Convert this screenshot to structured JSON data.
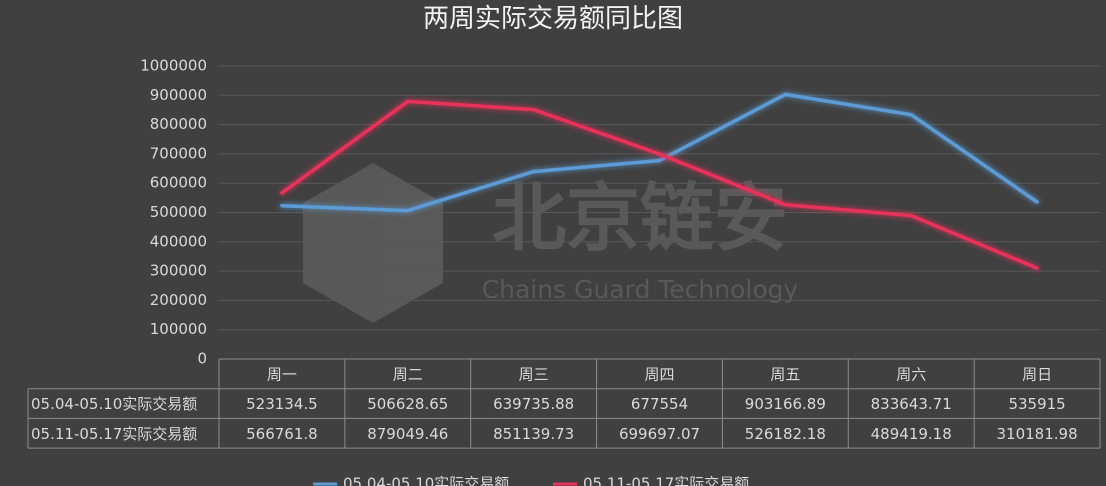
{
  "chart_data": {
    "type": "line",
    "title": "两周实际交易额同比图",
    "categories": [
      "周一",
      "周二",
      "周三",
      "周四",
      "周五",
      "周六",
      "周日"
    ],
    "series": [
      {
        "name": "05.04-05.10实际交易额",
        "color": "#5b9bd5",
        "values": [
          523134.5,
          506628.65,
          639735.88,
          677554,
          903166.89,
          833643.71,
          535915
        ]
      },
      {
        "name": "05.11-05.17实际交易额",
        "color": "#e8305a",
        "values": [
          566761.8,
          879049.46,
          851139.73,
          699697.07,
          526182.18,
          489419.18,
          310181.98
        ]
      }
    ],
    "ylim": [
      0,
      1000000
    ],
    "yticks": [
      0,
      100000,
      200000,
      300000,
      400000,
      500000,
      600000,
      700000,
      800000,
      900000,
      1000000
    ],
    "grid": true,
    "legend": "bottom",
    "data_table": true,
    "watermark": {
      "title": "北京链安",
      "subtitle": "Chains Guard Technology"
    }
  }
}
